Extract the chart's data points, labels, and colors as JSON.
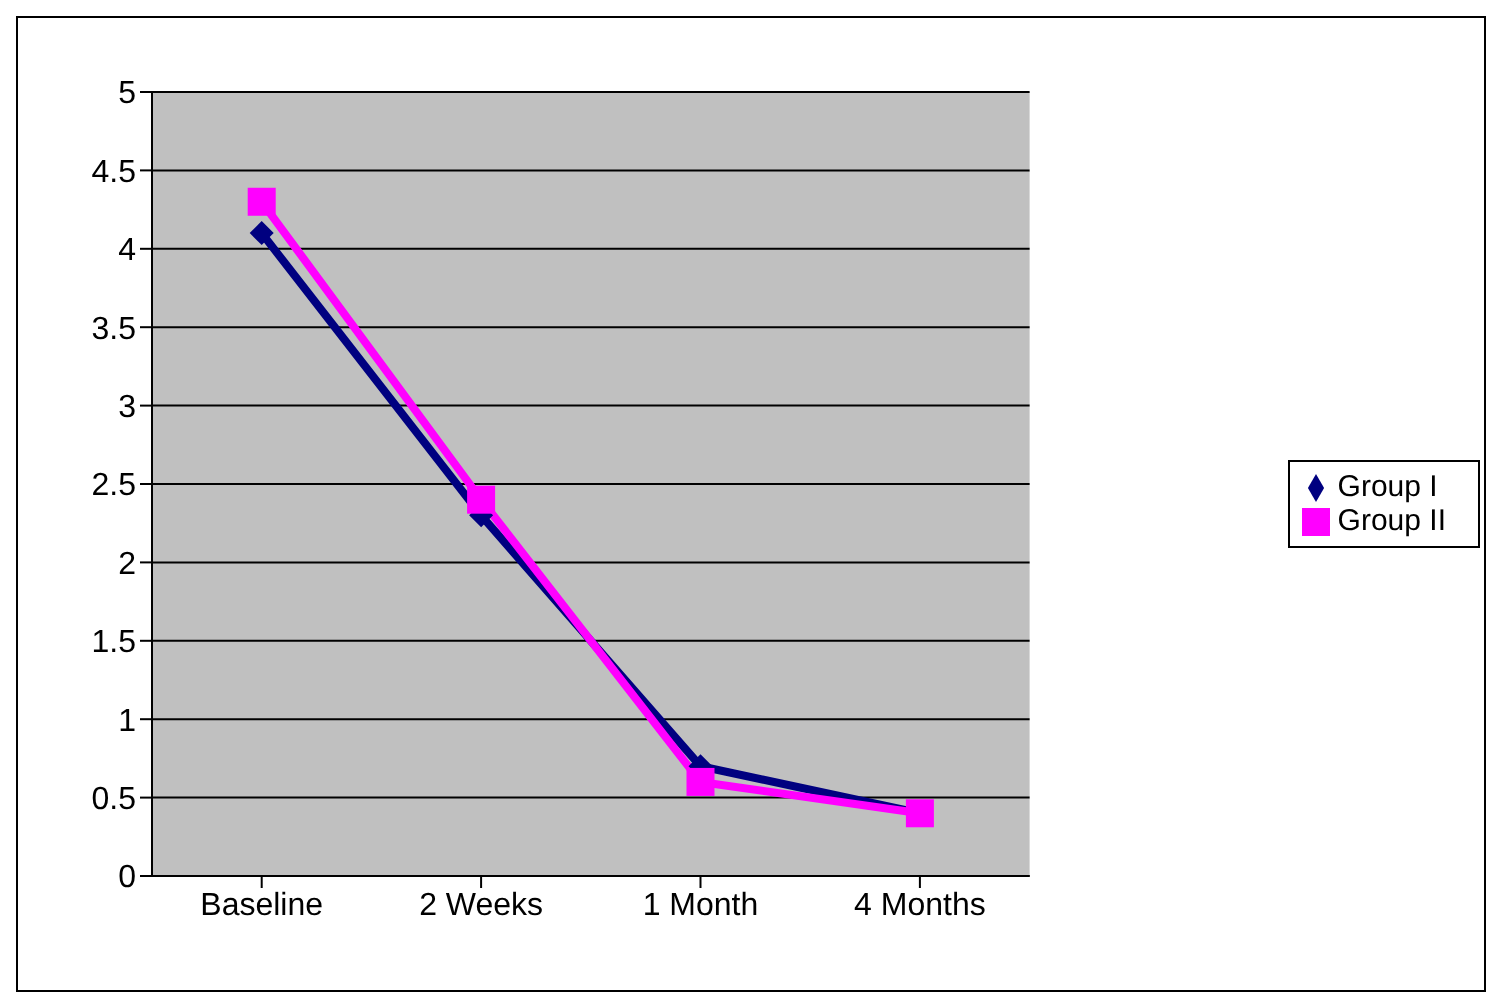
{
  "chart_data": {
    "type": "line",
    "categories": [
      "Baseline",
      "2 Weeks",
      "1 Month",
      "4 Months"
    ],
    "series": [
      {
        "name": "Group I",
        "color": "#000080",
        "marker": "diamond",
        "values": [
          4.1,
          2.3,
          0.7,
          0.4
        ]
      },
      {
        "name": "Group II",
        "color": "#ff00ff",
        "marker": "square",
        "values": [
          4.3,
          2.4,
          0.6,
          0.4
        ]
      }
    ],
    "ylim": [
      0,
      5
    ],
    "yticks": [
      0,
      0.5,
      1,
      1.5,
      2,
      2.5,
      3,
      3.5,
      4,
      4.5,
      5
    ],
    "grid": "y",
    "legend": "right"
  }
}
